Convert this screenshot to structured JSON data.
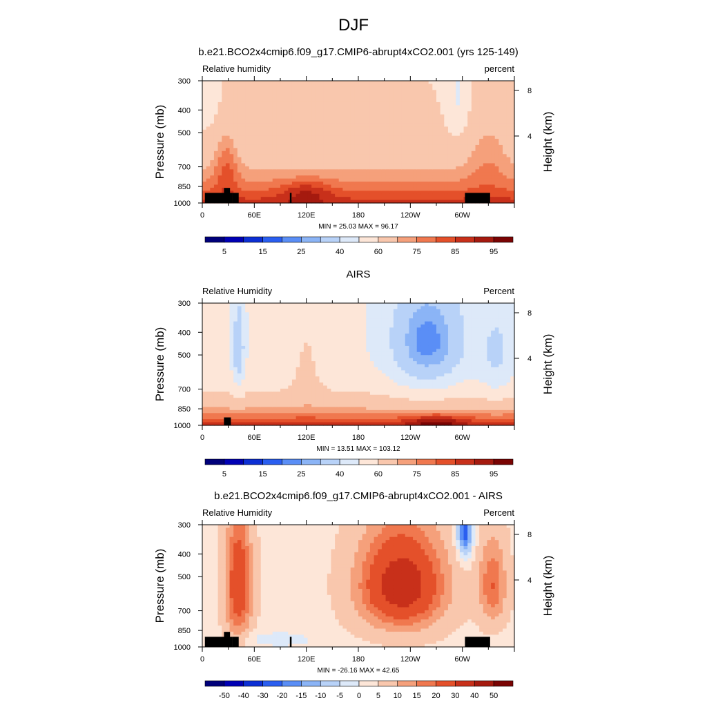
{
  "figure_title": "DJF",
  "colors": {
    "rh_scale": [
      "#00007a",
      "#0000b4",
      "#0c2fd4",
      "#2a5ef0",
      "#5a8ef6",
      "#8bb4f6",
      "#b8d2f8",
      "#dde9f9",
      "#fde6d8",
      "#f9c7ad",
      "#f5a07b",
      "#f0784f",
      "#e4502a",
      "#c8301a",
      "#a51a0f",
      "#7a0403"
    ],
    "diff_scale": [
      "#00007a",
      "#0000b4",
      "#0c2fd4",
      "#2a5ef0",
      "#5a8ef6",
      "#8bb4f6",
      "#b8d2f8",
      "#dde9f9",
      "#fde6d8",
      "#f9c7ad",
      "#f5a07b",
      "#f0784f",
      "#e4502a",
      "#c8301a",
      "#a51a0f",
      "#7a0403"
    ],
    "terrain": "#000000"
  },
  "chart_data": [
    {
      "type": "heatmap",
      "title": "b.e21.BCO2x4cmip6.f09_g17.CMIP6-abrupt4xCO2.001 (yrs 125-149)",
      "left_label": "Relative humidity",
      "right_label": "percent",
      "ylabel": "Pressure (mb)",
      "y2label": "Height (km)",
      "yticks": [
        "300",
        "400",
        "500",
        "700",
        "850",
        "1000"
      ],
      "ytick_values": [
        300,
        400,
        500,
        700,
        850,
        1000
      ],
      "y2ticks": [
        "8",
        "4"
      ],
      "xticks": [
        "0",
        "60E",
        "120E",
        "180",
        "120W",
        "60W"
      ],
      "xtick_values": [
        0,
        60,
        120,
        180,
        240,
        300
      ],
      "xlim": [
        0,
        360
      ],
      "ylim": [
        1000,
        300
      ],
      "stats": "MIN = 25.03  MAX = 96.17",
      "min": 25.03,
      "max": 96.17,
      "colorbar_labels": [
        "5",
        "15",
        "25",
        "40",
        "60",
        "75",
        "85",
        "95"
      ],
      "colorbar_levels": [
        1,
        5,
        10,
        15,
        20,
        25,
        30,
        40,
        50,
        60,
        70,
        75,
        80,
        85,
        90,
        95,
        100
      ]
    },
    {
      "type": "heatmap",
      "title": "AIRS",
      "left_label": "Relative Humidity",
      "right_label": "Percent",
      "ylabel": "Pressure (mb)",
      "y2label": "Height (km)",
      "yticks": [
        "300",
        "400",
        "500",
        "700",
        "850",
        "1000"
      ],
      "ytick_values": [
        300,
        400,
        500,
        700,
        850,
        1000
      ],
      "y2ticks": [
        "8",
        "4"
      ],
      "xticks": [
        "0",
        "60E",
        "120E",
        "180",
        "120W",
        "60W"
      ],
      "xtick_values": [
        0,
        60,
        120,
        180,
        240,
        300
      ],
      "xlim": [
        0,
        360
      ],
      "ylim": [
        1000,
        300
      ],
      "stats": "MIN = 13.51  MAX = 103.12",
      "min": 13.51,
      "max": 103.12,
      "colorbar_labels": [
        "5",
        "15",
        "25",
        "40",
        "60",
        "75",
        "85",
        "95"
      ],
      "colorbar_levels": [
        1,
        5,
        10,
        15,
        20,
        25,
        30,
        40,
        50,
        60,
        70,
        75,
        80,
        85,
        90,
        95,
        100
      ]
    },
    {
      "type": "heatmap",
      "title": "b.e21.BCO2x4cmip6.f09_g17.CMIP6-abrupt4xCO2.001 - AIRS",
      "left_label": "Relative Humidity",
      "right_label": "Percent",
      "ylabel": "Pressure (mb)",
      "y2label": "Height (km)",
      "yticks": [
        "300",
        "400",
        "500",
        "700",
        "850",
        "1000"
      ],
      "ytick_values": [
        300,
        400,
        500,
        700,
        850,
        1000
      ],
      "y2ticks": [
        "8",
        "4"
      ],
      "xticks": [
        "0",
        "60E",
        "120E",
        "180",
        "120W",
        "60W"
      ],
      "xtick_values": [
        0,
        60,
        120,
        180,
        240,
        300
      ],
      "xlim": [
        0,
        360
      ],
      "ylim": [
        1000,
        300
      ],
      "stats": "MIN = -26.16  MAX = 42.65",
      "min": -26.16,
      "max": 42.65,
      "colorbar_labels": [
        "-50",
        "-40",
        "-30",
        "-20",
        "-15",
        "-10",
        "-5",
        "0",
        "5",
        "10",
        "15",
        "20",
        "30",
        "40",
        "50"
      ],
      "colorbar_levels": [
        -60,
        -50,
        -40,
        -30,
        -20,
        -15,
        -10,
        -5,
        0,
        5,
        10,
        15,
        20,
        30,
        40,
        50,
        60
      ]
    }
  ]
}
